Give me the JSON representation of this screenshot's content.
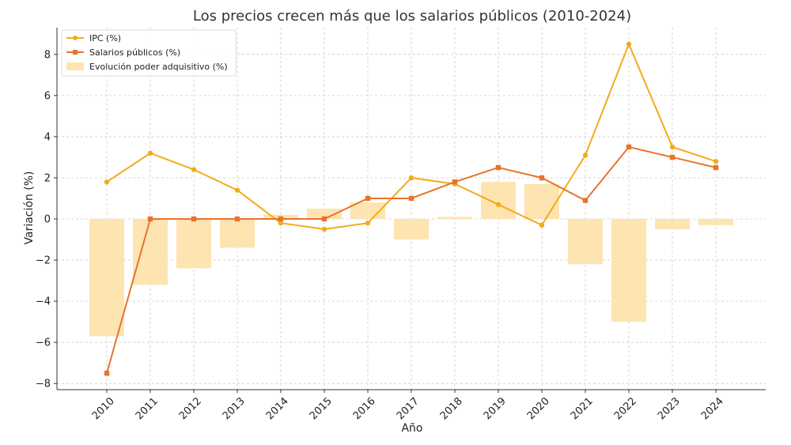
{
  "chart_data": {
    "type": "bar",
    "title": "Los precios crecen más que los salarios públicos (2010-2024)",
    "xlabel": "Año",
    "ylabel": "Variación (%)",
    "categories": [
      "2010",
      "2011",
      "2012",
      "2013",
      "2014",
      "2015",
      "2016",
      "2017",
      "2018",
      "2019",
      "2020",
      "2021",
      "2022",
      "2023",
      "2024"
    ],
    "ylim": [
      -8.3,
      9.3
    ],
    "yticks": [
      -8,
      -6,
      -4,
      -2,
      0,
      2,
      4,
      6,
      8
    ],
    "ytick_labels": [
      "−8",
      "−6",
      "−4",
      "−2",
      "0",
      "2",
      "4",
      "6",
      "8"
    ],
    "grid": true,
    "legend_position": "top-left",
    "series": [
      {
        "name": "IPC (%)",
        "kind": "line",
        "marker": "circle",
        "color": "#f2ab1a",
        "values": [
          1.8,
          3.2,
          2.4,
          1.4,
          -0.2,
          -0.5,
          -0.2,
          2.0,
          1.7,
          0.7,
          -0.3,
          3.1,
          8.5,
          3.5,
          2.8
        ]
      },
      {
        "name": "Salarios públicos (%)",
        "kind": "line",
        "marker": "square",
        "color": "#e8732a",
        "values": [
          -7.5,
          0,
          0,
          0,
          0,
          0,
          1.0,
          1.0,
          1.8,
          2.5,
          2.0,
          0.9,
          3.5,
          3.0,
          2.5
        ]
      },
      {
        "name": "Evolución poder adquisitivo (%)",
        "kind": "bar",
        "color": "#fde4b0",
        "values": [
          -5.7,
          -3.2,
          -2.4,
          -1.4,
          0.2,
          0.5,
          0.8,
          -1.0,
          0.1,
          1.8,
          1.7,
          -2.2,
          -5.0,
          -0.5,
          -0.3
        ]
      }
    ]
  }
}
